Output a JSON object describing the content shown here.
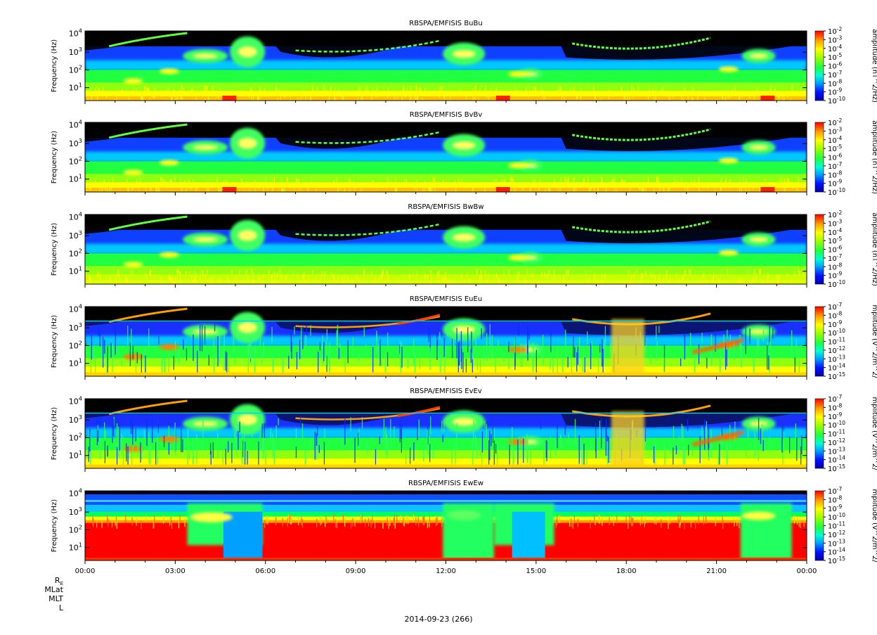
{
  "chart_data": {
    "type": "heatmap",
    "panels": [
      {
        "title": "RBSPA/EMFISIS  BuBu",
        "ylabel": "Frequency (Hz)",
        "y_scale": "log",
        "y_ticks": [
          "10^1",
          "10^2",
          "10^3",
          "10^4"
        ],
        "colorbar_label": "amplitude (nT^2/Hz)",
        "colorbar_ticks": [
          "10^-2",
          "10^-3",
          "10^-4",
          "10^-5",
          "10^-6",
          "10^-7",
          "10^-8",
          "10^-9",
          "10^-10"
        ],
        "style": "magnetic"
      },
      {
        "title": "RBSPA/EMFISIS  BvBv",
        "ylabel": "Frequency (Hz)",
        "y_scale": "log",
        "y_ticks": [
          "10^1",
          "10^2",
          "10^3",
          "10^4"
        ],
        "colorbar_label": "amplitude (nT^2/Hz)",
        "colorbar_ticks": [
          "10^-2",
          "10^-3",
          "10^-4",
          "10^-5",
          "10^-6",
          "10^-7",
          "10^-8",
          "10^-9",
          "10^-10"
        ],
        "style": "magnetic"
      },
      {
        "title": "RBSPA/EMFISIS  BwBw",
        "ylabel": "Frequency (Hz)",
        "y_scale": "log",
        "y_ticks": [
          "10^1",
          "10^2",
          "10^3",
          "10^4"
        ],
        "colorbar_label": "amplitude (nT^2/Hz)",
        "colorbar_ticks": [
          "10^-2",
          "10^-3",
          "10^-4",
          "10^-5",
          "10^-6",
          "10^-7",
          "10^-8",
          "10^-9",
          "10^-10"
        ],
        "style": "magnetic_w"
      },
      {
        "title": "RBSPA/EMFISIS  EuEu",
        "ylabel": "Frequency (Hz)",
        "y_scale": "log",
        "y_ticks": [
          "10^1",
          "10^2",
          "10^3",
          "10^4"
        ],
        "colorbar_label": "mplitude (V^2/m^2/",
        "colorbar_ticks": [
          "10^-7",
          "10^-8",
          "10^-9",
          "10^-10",
          "10^-11",
          "10^-12",
          "10^-13",
          "10^-14",
          "10^-15"
        ],
        "style": "electric"
      },
      {
        "title": "RBSPA/EMFISIS  EvEv",
        "ylabel": "Frequency (Hz)",
        "y_scale": "log",
        "y_ticks": [
          "10^1",
          "10^2",
          "10^3",
          "10^4"
        ],
        "colorbar_label": "mplitude (V^2/m^2/",
        "colorbar_ticks": [
          "10^-7",
          "10^-8",
          "10^-9",
          "10^-10",
          "10^-11",
          "10^-12",
          "10^-13",
          "10^-14",
          "10^-15"
        ],
        "style": "electric"
      },
      {
        "title": "RBSPA/EMFISIS  EwEw",
        "ylabel": "Frequency (Hz)",
        "y_scale": "log",
        "y_ticks": [
          "10^1",
          "10^2",
          "10^3",
          "10^4"
        ],
        "colorbar_label": "mplitude (V^2/m^2/",
        "colorbar_ticks": [
          "10^-7",
          "10^-8",
          "10^-9",
          "10^-10",
          "10^-11",
          "10^-12",
          "10^-13",
          "10^-14",
          "10^-15"
        ],
        "style": "electric_w"
      }
    ],
    "x_tick_labels": [
      "00:00",
      "03:00",
      "06:00",
      "09:00",
      "12:00",
      "15:00",
      "18:00",
      "21:00",
      "00:00"
    ],
    "ephemeris_labels": [
      "R_E",
      "MLat",
      "MLT",
      "L"
    ],
    "date_label": "2014-09-23 (266)"
  }
}
